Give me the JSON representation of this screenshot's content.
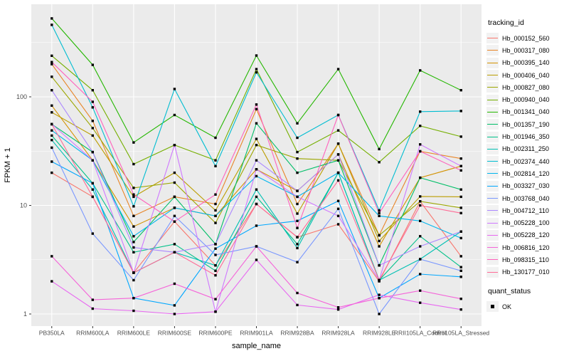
{
  "figure": {
    "background": "#FFFFFF",
    "panel_background": "#EBEBEB",
    "gridline_color": "#FFFFFF",
    "axis_text_color": "#4D4D4D",
    "tick_mark_color": "#333333",
    "point_color": "#000000"
  },
  "legend": {
    "tracking_title": "tracking_id",
    "quant_title": "quant_status",
    "quant_items": [
      "OK"
    ]
  },
  "chart_data": {
    "type": "line",
    "title": "",
    "xlabel": "sample_name",
    "ylabel": "FPKM + 1",
    "y_scale": "log10",
    "ylim": [
      0.75,
      650
    ],
    "grid": "on",
    "legend_position": "right",
    "y_ticks": [
      {
        "label": "100",
        "value": 100
      },
      {
        "label": "10",
        "value": 10
      },
      {
        "label": "1",
        "value": 1
      }
    ],
    "y_minor_grid": [
      3.1623,
      31.623,
      316.23
    ],
    "categories": [
      "PB350LA",
      "RRIM600LA",
      "RRIM600LE",
      "RRIM600SE",
      "RRIM600PE",
      "RRIM901LA",
      "RRIM928BA",
      "RRIM928LA",
      "RRIM928LE",
      "RRII105LA_Control",
      "RRII105LA_Stressed"
    ],
    "series": [
      {
        "name": "Hb_000152_560",
        "color": "#F8766D",
        "values": [
          20,
          12,
          2.4,
          7.1,
          2.8,
          10.3,
          5.1,
          6.7,
          2.0,
          10.9,
          3.4
        ]
      },
      {
        "name": "Hb_000317_080",
        "color": "#E88526",
        "values": [
          200,
          60,
          8.0,
          12,
          10.3,
          77,
          10.3,
          37,
          5.3,
          31.5,
          27
        ]
      },
      {
        "name": "Hb_000395_140",
        "color": "#D39200",
        "values": [
          83,
          26,
          6.4,
          9.5,
          8.0,
          21.5,
          13.6,
          29.5,
          4.2,
          18,
          23
        ]
      },
      {
        "name": "Hb_000406_040",
        "color": "#BB9D00",
        "values": [
          72,
          44,
          12,
          20,
          9.0,
          41,
          8.4,
          37,
          4.7,
          12.1,
          12
        ]
      },
      {
        "name": "Hb_000827_080",
        "color": "#9CA700",
        "values": [
          153,
          51.5,
          14.5,
          16.2,
          6.9,
          36,
          27,
          26,
          5.3,
          10.9,
          9.5
        ]
      },
      {
        "name": "Hb_000940_040",
        "color": "#75AF00",
        "values": [
          239,
          115,
          24,
          36,
          26,
          180,
          31,
          49,
          25,
          54,
          43
        ]
      },
      {
        "name": "Hb_001341_040",
        "color": "#24B700",
        "values": [
          527,
          197,
          38,
          68,
          42,
          240,
          57,
          180,
          33,
          175,
          115
        ]
      },
      {
        "name": "Hb_001357_190",
        "color": "#00BE67",
        "values": [
          56,
          31,
          4.6,
          12,
          4.4,
          57,
          20,
          26,
          2.8,
          18,
          14
        ]
      },
      {
        "name": "Hb_001946_350",
        "color": "#00C189",
        "values": [
          44,
          16,
          3.7,
          4.4,
          2.5,
          12,
          4.4,
          20,
          2.05,
          5.2,
          2.7
        ]
      },
      {
        "name": "Hb_002311_250",
        "color": "#00C0B3",
        "values": [
          40,
          14,
          2.4,
          3.7,
          2.8,
          14,
          4.05,
          20,
          2.05,
          3.2,
          5.75
        ]
      },
      {
        "name": "Hb_002374_440",
        "color": "#00BDD1",
        "values": [
          460,
          80,
          9.8,
          118,
          23,
          168,
          42,
          68,
          9.0,
          73,
          74
        ]
      },
      {
        "name": "Hb_002814_120",
        "color": "#00B5EE",
        "values": [
          49,
          26,
          5.2,
          9.5,
          8.0,
          18.6,
          12,
          20,
          8.0,
          7.2,
          5.0
        ]
      },
      {
        "name": "Hb_003327_030",
        "color": "#00A7FF",
        "values": [
          25.3,
          16,
          1.4,
          1.2,
          4.0,
          6.5,
          7.2,
          11,
          1.4,
          2.33,
          2.2
        ]
      },
      {
        "name": "Hb_003768_040",
        "color": "#7997FF",
        "values": [
          34,
          5.5,
          2.05,
          8.0,
          3.5,
          4.2,
          3.0,
          9.3,
          1.0,
          3.2,
          2.5
        ]
      },
      {
        "name": "Hb_004712_110",
        "color": "#AC88FF",
        "values": [
          115,
          31,
          4.1,
          3.7,
          4.4,
          26,
          13.6,
          29.5,
          2.8,
          4.2,
          5.75
        ]
      },
      {
        "name": "Hb_005228_100",
        "color": "#CF78FF",
        "values": [
          56,
          26,
          2.4,
          36,
          1.05,
          21.5,
          12,
          8.0,
          2.05,
          36.5,
          23
        ]
      },
      {
        "name": "Hb_005228_120",
        "color": "#E868F1",
        "values": [
          2.0,
          1.12,
          1.07,
          1.0,
          1.05,
          3.15,
          1.21,
          1.1,
          1.5,
          1.27,
          1.1
        ]
      },
      {
        "name": "Hb_006816_120",
        "color": "#F564D9",
        "values": [
          3.4,
          1.35,
          1.4,
          1.9,
          1.37,
          4.2,
          1.56,
          1.15,
          1.4,
          1.64,
          1.38
        ]
      },
      {
        "name": "Hb_098315_110",
        "color": "#FF62BD",
        "values": [
          209,
          90,
          12.6,
          7.1,
          12.6,
          85,
          6.2,
          68,
          8.5,
          31.5,
          21
        ]
      },
      {
        "name": "Hb_130177_010",
        "color": "#FF6A95",
        "values": [
          56,
          12,
          2.4,
          3.7,
          2.27,
          10.3,
          5.1,
          17,
          2.05,
          10,
          8.5
        ]
      }
    ]
  }
}
